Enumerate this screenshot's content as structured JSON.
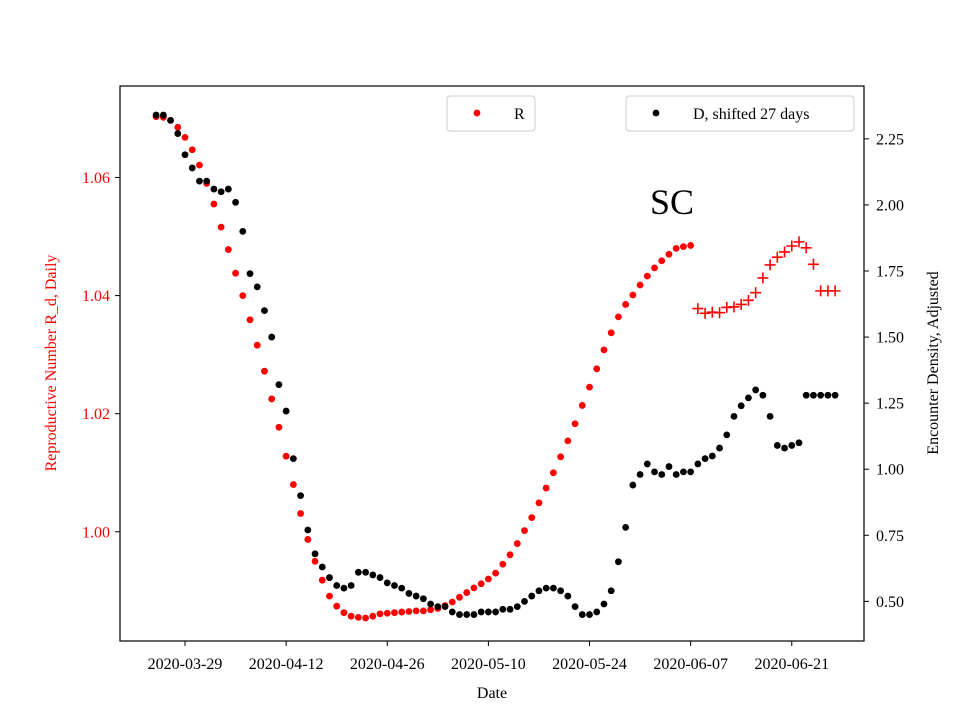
{
  "chart_data": {
    "type": "scatter",
    "xlabel": "Date",
    "ylabel_left": "Reproductive Number R_d, Daily",
    "ylabel_right": "Encounter Density, Adjusted",
    "annotation": "SC",
    "x_start": "2020-03-25",
    "x_ticks": [
      "2020-03-29",
      "2020-04-12",
      "2020-04-26",
      "2020-05-10",
      "2020-05-24",
      "2020-06-07",
      "2020-06-21"
    ],
    "xlim": [
      "2020-03-20",
      "2020-07-01"
    ],
    "ylim_left": [
      0.9815,
      1.0755
    ],
    "ylim_right": [
      0.35,
      2.45
    ],
    "y_ticks_left": [
      "1.00",
      "1.02",
      "1.04",
      "1.06"
    ],
    "y_ticks_right": [
      "0.50",
      "0.75",
      "1.00",
      "1.25",
      "1.50",
      "1.75",
      "2.00",
      "2.25"
    ],
    "legend_left": {
      "label": "R",
      "position": "top-center"
    },
    "legend_right": {
      "label": "D, shifted 27 days",
      "position": "top-right"
    },
    "colors": {
      "R": "#ff0000",
      "D": "#000000",
      "left_axis": "#ff0000",
      "right_axis": "#000000"
    },
    "series": [
      {
        "name": "R",
        "axis": "left",
        "marker": "dot",
        "x": [
          "2020-03-25",
          "2020-03-26",
          "2020-03-27",
          "2020-03-28",
          "2020-03-29",
          "2020-03-30",
          "2020-03-31",
          "2020-04-01",
          "2020-04-02",
          "2020-04-03",
          "2020-04-04",
          "2020-04-05",
          "2020-04-06",
          "2020-04-07",
          "2020-04-08",
          "2020-04-09",
          "2020-04-10",
          "2020-04-11",
          "2020-04-12",
          "2020-04-13",
          "2020-04-14",
          "2020-04-15",
          "2020-04-16",
          "2020-04-17",
          "2020-04-18",
          "2020-04-19",
          "2020-04-20",
          "2020-04-21",
          "2020-04-22",
          "2020-04-23",
          "2020-04-24",
          "2020-04-25",
          "2020-04-26",
          "2020-04-27",
          "2020-04-28",
          "2020-04-29",
          "2020-04-30",
          "2020-05-01",
          "2020-05-02",
          "2020-05-03",
          "2020-05-04",
          "2020-05-05",
          "2020-05-06",
          "2020-05-07",
          "2020-05-08",
          "2020-05-09",
          "2020-05-10",
          "2020-05-11",
          "2020-05-12",
          "2020-05-13",
          "2020-05-14",
          "2020-05-15",
          "2020-05-16",
          "2020-05-17",
          "2020-05-18",
          "2020-05-19",
          "2020-05-20",
          "2020-05-21",
          "2020-05-22",
          "2020-05-23",
          "2020-05-24",
          "2020-05-25",
          "2020-05-26",
          "2020-05-27",
          "2020-05-28",
          "2020-05-29",
          "2020-05-30",
          "2020-05-31",
          "2020-06-01",
          "2020-06-02",
          "2020-06-03",
          "2020-06-04",
          "2020-06-05",
          "2020-06-06",
          "2020-06-07"
        ],
        "y": [
          1.0703,
          1.0702,
          1.0697,
          1.0685,
          1.0668,
          1.0647,
          1.0621,
          1.059,
          1.0555,
          1.0516,
          1.0478,
          1.0438,
          1.04,
          1.0359,
          1.0316,
          1.0272,
          1.0225,
          1.0177,
          1.0128,
          1.008,
          1.0031,
          0.9987,
          0.995,
          0.9918,
          0.9891,
          0.9874,
          0.9863,
          0.9857,
          0.9855,
          0.9854,
          0.9857,
          0.9861,
          0.9862,
          0.9863,
          0.9864,
          0.9865,
          0.9866,
          0.9866,
          0.9868,
          0.987,
          0.9875,
          0.9881,
          0.9889,
          0.9897,
          0.9905,
          0.9912,
          0.992,
          0.993,
          0.9945,
          0.9961,
          0.998,
          1.0002,
          1.0024,
          1.0049,
          1.0074,
          1.01,
          1.0127,
          1.0154,
          1.0183,
          1.0214,
          1.0245,
          1.0276,
          1.0308,
          1.0337,
          1.0364,
          1.0385,
          1.0401,
          1.0418,
          1.0433,
          1.0447,
          1.0459,
          1.047,
          1.048,
          1.0483,
          1.0485
        ]
      },
      {
        "name": "R",
        "axis": "left",
        "marker": "plus",
        "x": [
          "2020-06-08",
          "2020-06-09",
          "2020-06-10",
          "2020-06-11",
          "2020-06-12",
          "2020-06-13",
          "2020-06-14",
          "2020-06-15",
          "2020-06-16",
          "2020-06-17",
          "2020-06-18",
          "2020-06-19",
          "2020-06-20",
          "2020-06-21",
          "2020-06-22",
          "2020-06-23",
          "2020-06-24",
          "2020-06-25",
          "2020-06-26",
          "2020-06-27"
        ],
        "y": [
          1.0378,
          1.037,
          1.0372,
          1.0371,
          1.038,
          1.0381,
          1.0385,
          1.0392,
          1.0405,
          1.043,
          1.0452,
          1.0465,
          1.0474,
          1.0484,
          1.0491,
          1.0481,
          1.0453,
          1.0408,
          1.0408,
          1.0408
        ]
      },
      {
        "name": "D, shifted 27 days",
        "axis": "right",
        "marker": "dot",
        "x": [
          "2020-03-25",
          "2020-03-26",
          "2020-03-27",
          "2020-03-28",
          "2020-03-29",
          "2020-03-30",
          "2020-03-31",
          "2020-04-01",
          "2020-04-02",
          "2020-04-03",
          "2020-04-04",
          "2020-04-05",
          "2020-04-06",
          "2020-04-07",
          "2020-04-08",
          "2020-04-09",
          "2020-04-10",
          "2020-04-11",
          "2020-04-12",
          "2020-04-13",
          "2020-04-14",
          "2020-04-15",
          "2020-04-16",
          "2020-04-17",
          "2020-04-18",
          "2020-04-19",
          "2020-04-20",
          "2020-04-21",
          "2020-04-22",
          "2020-04-23",
          "2020-04-24",
          "2020-04-25",
          "2020-04-26",
          "2020-04-27",
          "2020-04-28",
          "2020-04-29",
          "2020-04-30",
          "2020-05-01",
          "2020-05-02",
          "2020-05-03",
          "2020-05-04",
          "2020-05-05",
          "2020-05-06",
          "2020-05-07",
          "2020-05-08",
          "2020-05-09",
          "2020-05-10",
          "2020-05-11",
          "2020-05-12",
          "2020-05-13",
          "2020-05-14",
          "2020-05-15",
          "2020-05-16",
          "2020-05-17",
          "2020-05-18",
          "2020-05-19",
          "2020-05-20",
          "2020-05-21",
          "2020-05-22",
          "2020-05-23",
          "2020-05-24",
          "2020-05-25",
          "2020-05-26",
          "2020-05-27",
          "2020-05-28",
          "2020-05-29",
          "2020-05-30",
          "2020-05-31",
          "2020-06-01",
          "2020-06-02",
          "2020-06-03",
          "2020-06-04",
          "2020-06-05",
          "2020-06-06",
          "2020-06-07",
          "2020-06-08",
          "2020-06-09",
          "2020-06-10",
          "2020-06-11",
          "2020-06-12",
          "2020-06-13",
          "2020-06-14",
          "2020-06-15",
          "2020-06-16",
          "2020-06-17",
          "2020-06-18",
          "2020-06-19",
          "2020-06-20",
          "2020-06-21",
          "2020-06-22",
          "2020-06-23",
          "2020-06-24",
          "2020-06-25",
          "2020-06-26",
          "2020-06-27"
        ],
        "y": [
          2.34,
          2.34,
          2.32,
          2.27,
          2.19,
          2.14,
          2.09,
          2.09,
          2.06,
          2.05,
          2.06,
          2.01,
          1.9,
          1.74,
          1.69,
          1.6,
          1.5,
          1.32,
          1.22,
          1.04,
          0.9,
          0.77,
          0.68,
          0.63,
          0.59,
          0.56,
          0.55,
          0.56,
          0.61,
          0.61,
          0.6,
          0.59,
          0.57,
          0.56,
          0.55,
          0.53,
          0.52,
          0.51,
          0.49,
          0.48,
          0.48,
          0.46,
          0.45,
          0.45,
          0.45,
          0.46,
          0.46,
          0.46,
          0.47,
          0.47,
          0.48,
          0.5,
          0.52,
          0.54,
          0.55,
          0.55,
          0.54,
          0.52,
          0.48,
          0.45,
          0.45,
          0.46,
          0.49,
          0.54,
          0.65,
          0.78,
          0.94,
          0.98,
          1.02,
          0.99,
          0.98,
          1.01,
          0.98,
          0.99,
          0.99,
          1.02,
          1.04,
          1.05,
          1.08,
          1.13,
          1.2,
          1.24,
          1.27,
          1.3,
          1.28,
          1.2,
          1.09,
          1.08,
          1.09,
          1.1,
          1.28,
          1.28,
          1.28,
          1.28,
          1.28
        ]
      }
    ]
  }
}
